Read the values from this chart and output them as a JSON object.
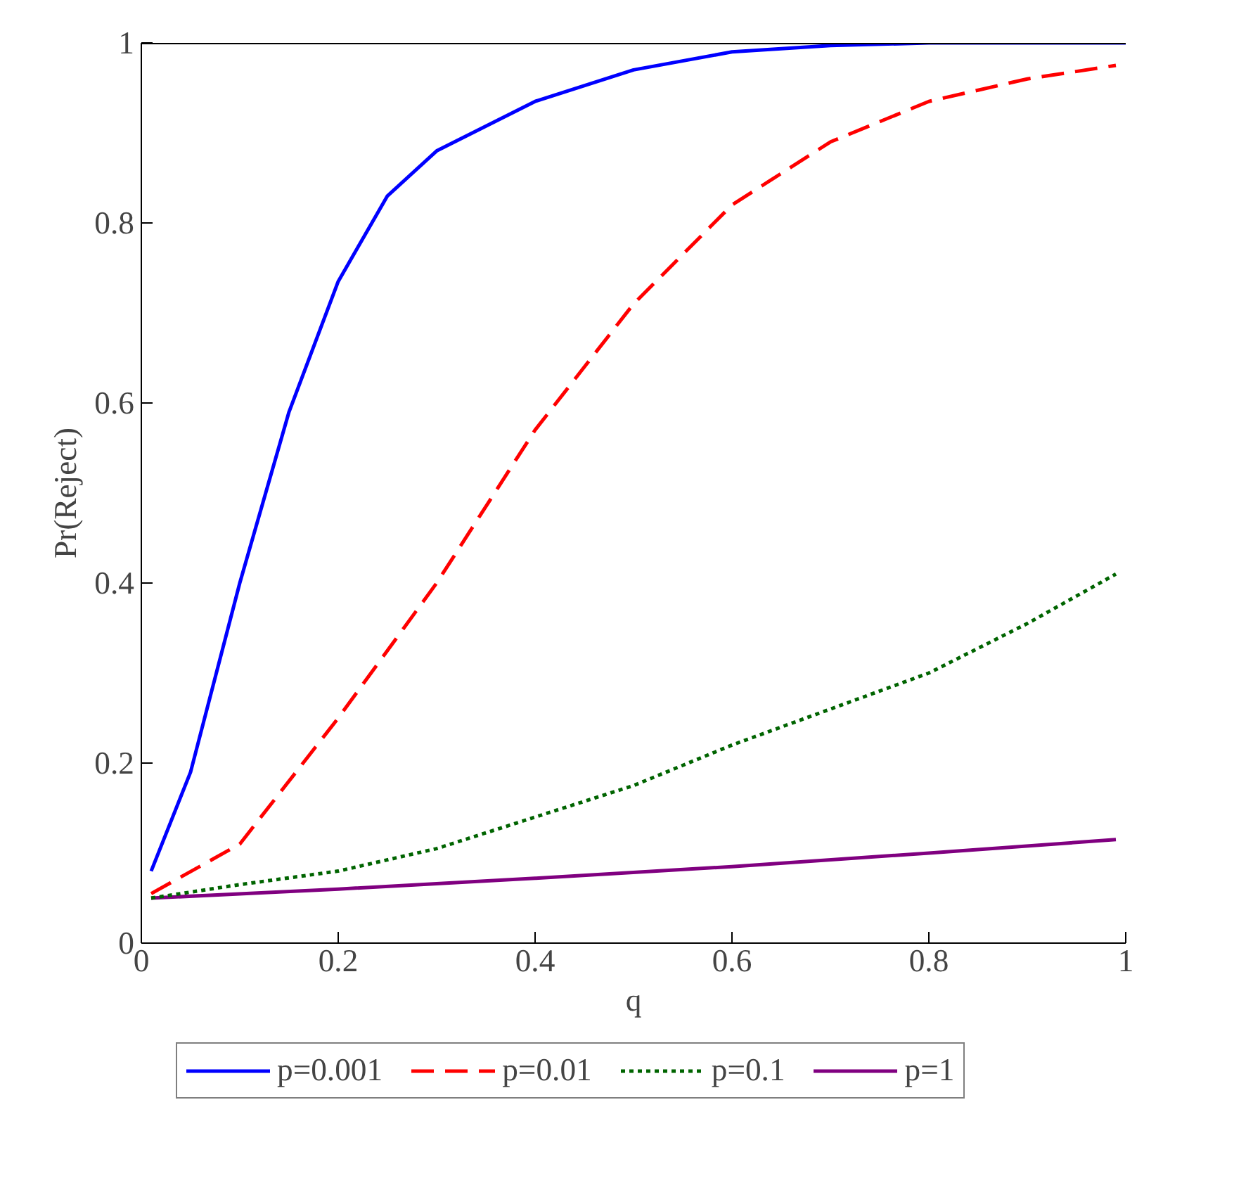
{
  "chart_data": {
    "type": "line",
    "xlabel": "q",
    "ylabel": "Pr(Reject)",
    "xlim": [
      0,
      1
    ],
    "ylim": [
      0,
      1
    ],
    "xticks": [
      0,
      0.2,
      0.4,
      0.6,
      0.8,
      1
    ],
    "yticks": [
      0,
      0.2,
      0.4,
      0.6,
      0.8,
      1
    ],
    "grid": false,
    "legend": "bottom",
    "marker": "none",
    "ref_lines": [
      {
        "axis": "y",
        "value": 1,
        "color": "#000000",
        "line_style": "solid"
      }
    ],
    "series": [
      {
        "name": "p=0.001",
        "color": "#0000ff",
        "line_style": "solid",
        "x": [
          0.01,
          0.05,
          0.1,
          0.15,
          0.2,
          0.25,
          0.3,
          0.4,
          0.5,
          0.6,
          0.7,
          0.8,
          0.9,
          1
        ],
        "values": [
          0.08,
          0.19,
          0.4,
          0.59,
          0.735,
          0.83,
          0.88,
          0.935,
          0.97,
          0.99,
          0.997,
          1,
          1,
          1
        ]
      },
      {
        "name": "p=0.01",
        "color": "#ff0000",
        "line_style": "dashed",
        "x": [
          0.01,
          0.1,
          0.2,
          0.3,
          0.4,
          0.5,
          0.6,
          0.7,
          0.8,
          0.9,
          0.99
        ],
        "values": [
          0.055,
          0.11,
          0.25,
          0.4,
          0.57,
          0.71,
          0.82,
          0.89,
          0.935,
          0.96,
          0.975
        ]
      },
      {
        "name": "p=0.1",
        "color": "#006400",
        "line_style": "dotted",
        "x": [
          0.01,
          0.1,
          0.2,
          0.3,
          0.4,
          0.5,
          0.6,
          0.7,
          0.8,
          0.9,
          0.99
        ],
        "values": [
          0.05,
          0.065,
          0.08,
          0.105,
          0.14,
          0.175,
          0.22,
          0.26,
          0.3,
          0.355,
          0.41
        ]
      },
      {
        "name": "p=1",
        "color": "#800080",
        "line_style": "solid",
        "x": [
          0.01,
          0.2,
          0.4,
          0.6,
          0.8,
          0.99
        ],
        "values": [
          0.05,
          0.06,
          0.072,
          0.085,
          0.1,
          0.115
        ]
      }
    ]
  }
}
